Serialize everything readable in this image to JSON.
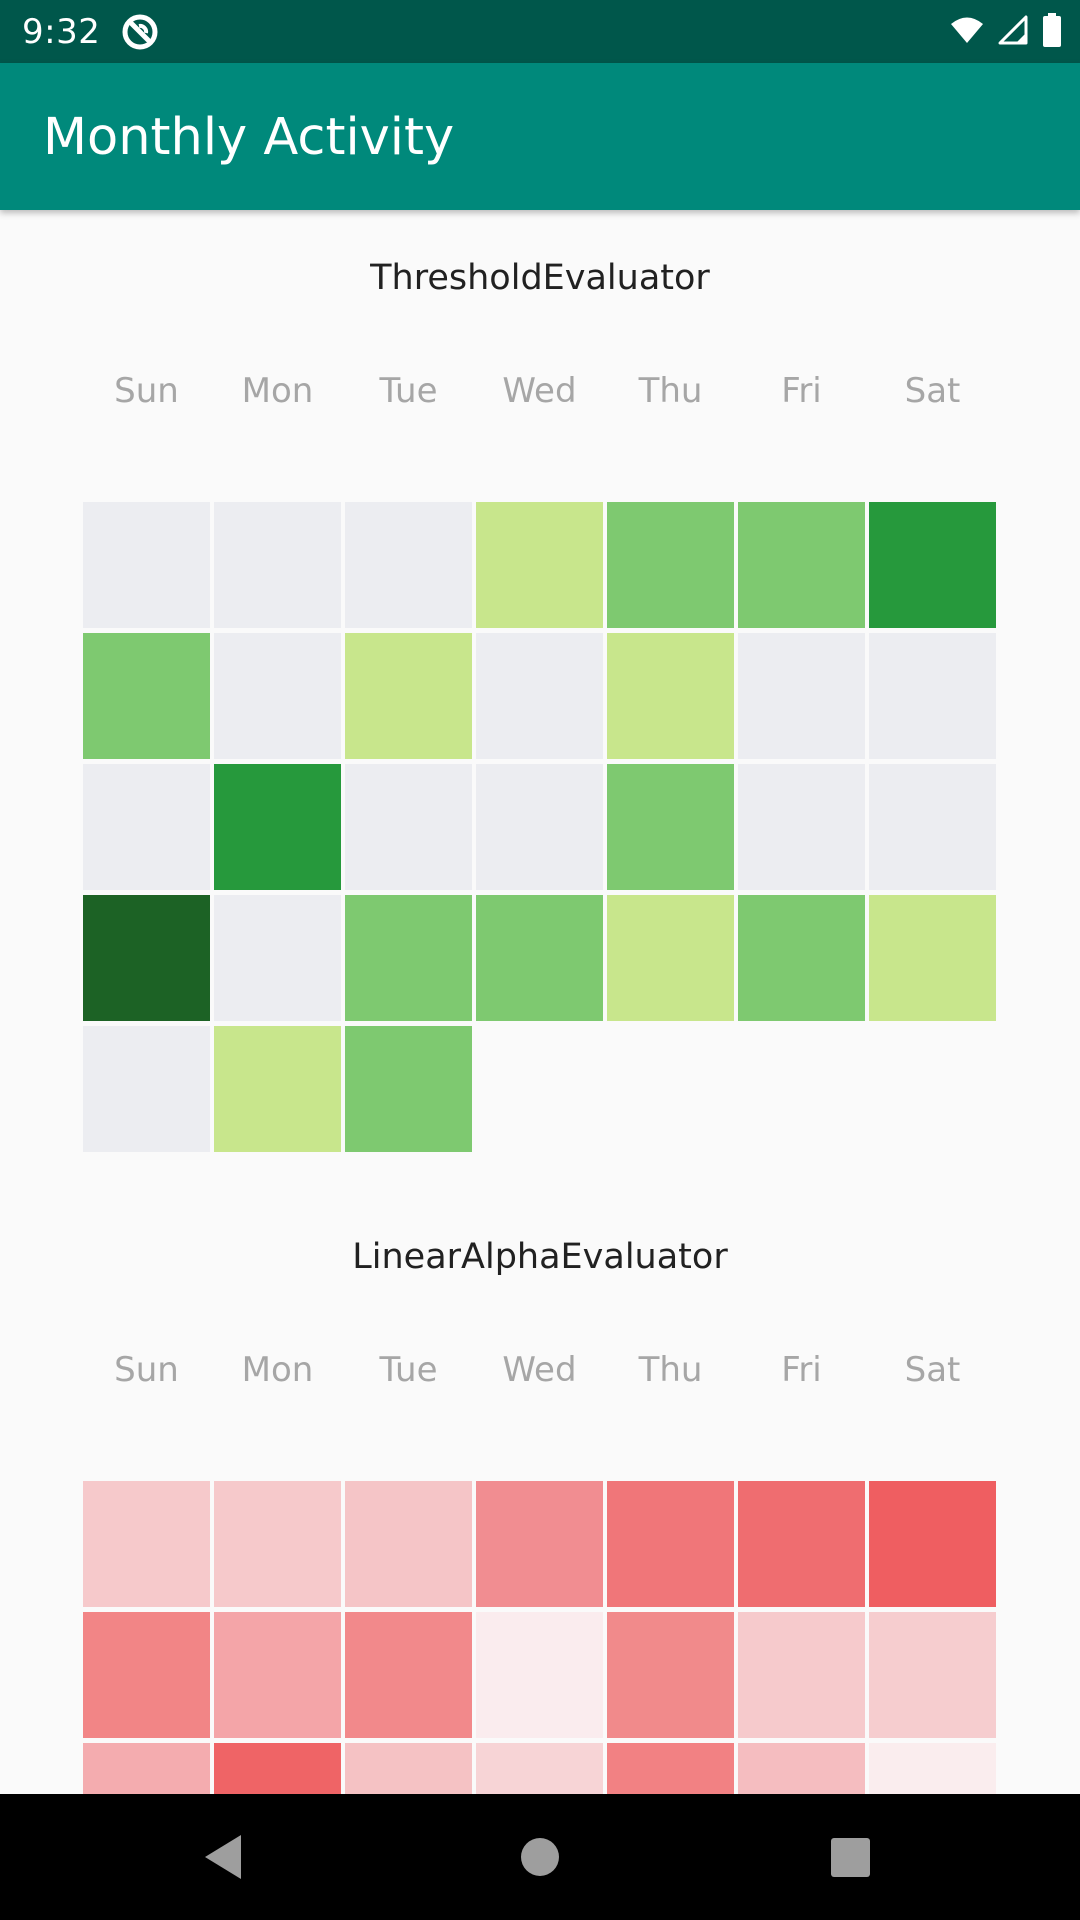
{
  "status_bar": {
    "time": "9:32",
    "icons": [
      "notification-icon",
      "wifi-icon",
      "cellular-signal-icon",
      "battery-icon"
    ]
  },
  "app_bar": {
    "title": "Monthly Activity",
    "background": "#00897B",
    "status_background": "#00574B"
  },
  "weekdays": [
    "Sun",
    "Mon",
    "Tue",
    "Wed",
    "Thu",
    "Fri",
    "Sat"
  ],
  "heatmaps": [
    {
      "title": "ThresholdEvaluator",
      "rows": [
        [
          "#ECEDF1",
          "#ECEDF1",
          "#ECEDF1",
          "#C8E68C",
          "#7EC970",
          "#7EC970",
          "#26993C"
        ],
        [
          "#7EC970",
          "#ECEDF1",
          "#C8E68C",
          "#ECEDF1",
          "#C8E68C",
          "#ECEDF1",
          "#ECEDF1"
        ],
        [
          "#ECEDF1",
          "#26993C",
          "#ECEDF1",
          "#ECEDF1",
          "#7EC970",
          "#ECEDF1",
          "#ECEDF1"
        ],
        [
          "#1C6225",
          "#ECEDF1",
          "#7EC970",
          "#7EC970",
          "#C8E68C",
          "#7EC970",
          "#C8E68C"
        ],
        [
          "#ECEDF1",
          "#C8E68C",
          "#7EC970"
        ]
      ]
    },
    {
      "title": "LinearAlphaEvaluator",
      "rows": [
        [
          "#F6C9CB",
          "#F6C9CB",
          "#F5C5C7",
          "#F18D91",
          "#F07679",
          "#EF6D70",
          "#EF5E61"
        ],
        [
          "#F28586",
          "#F4A5A8",
          "#F2898B",
          "#FAECEE",
          "#F18A8B",
          "#F6CACC",
          "#F6CDCF"
        ],
        [
          "#F4ACAF",
          "#EF6466",
          "#F5C2C4",
          "#F7D4D6",
          "#F28183",
          "#F5BDC0",
          "#FAEDEE"
        ]
      ]
    }
  ]
}
